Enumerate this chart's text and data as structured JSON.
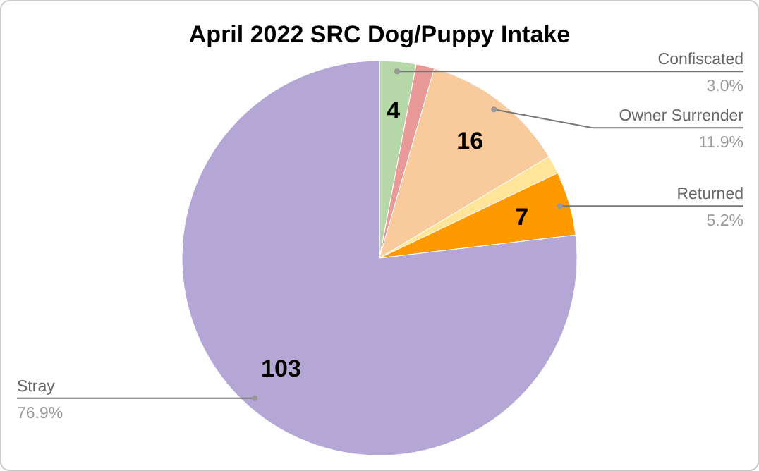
{
  "chart_data": {
    "type": "pie",
    "title": "April 2022 SRC Dog/Puppy Intake",
    "categories": [
      "Confiscated",
      null,
      "Owner Surrender",
      null,
      "Returned",
      "Stray"
    ],
    "values": [
      4,
      2,
      16,
      2,
      7,
      103
    ],
    "value_labels": [
      "4",
      null,
      "16",
      null,
      "7",
      "103"
    ],
    "colors": [
      "#b6d7a8",
      "#ea9999",
      "#f9cb9c",
      "#ffe599",
      "#ff9900",
      "#b4a7d6"
    ],
    "annotations": [
      "3.0%",
      "11.9%",
      "5.2%",
      "76.9%"
    ]
  }
}
